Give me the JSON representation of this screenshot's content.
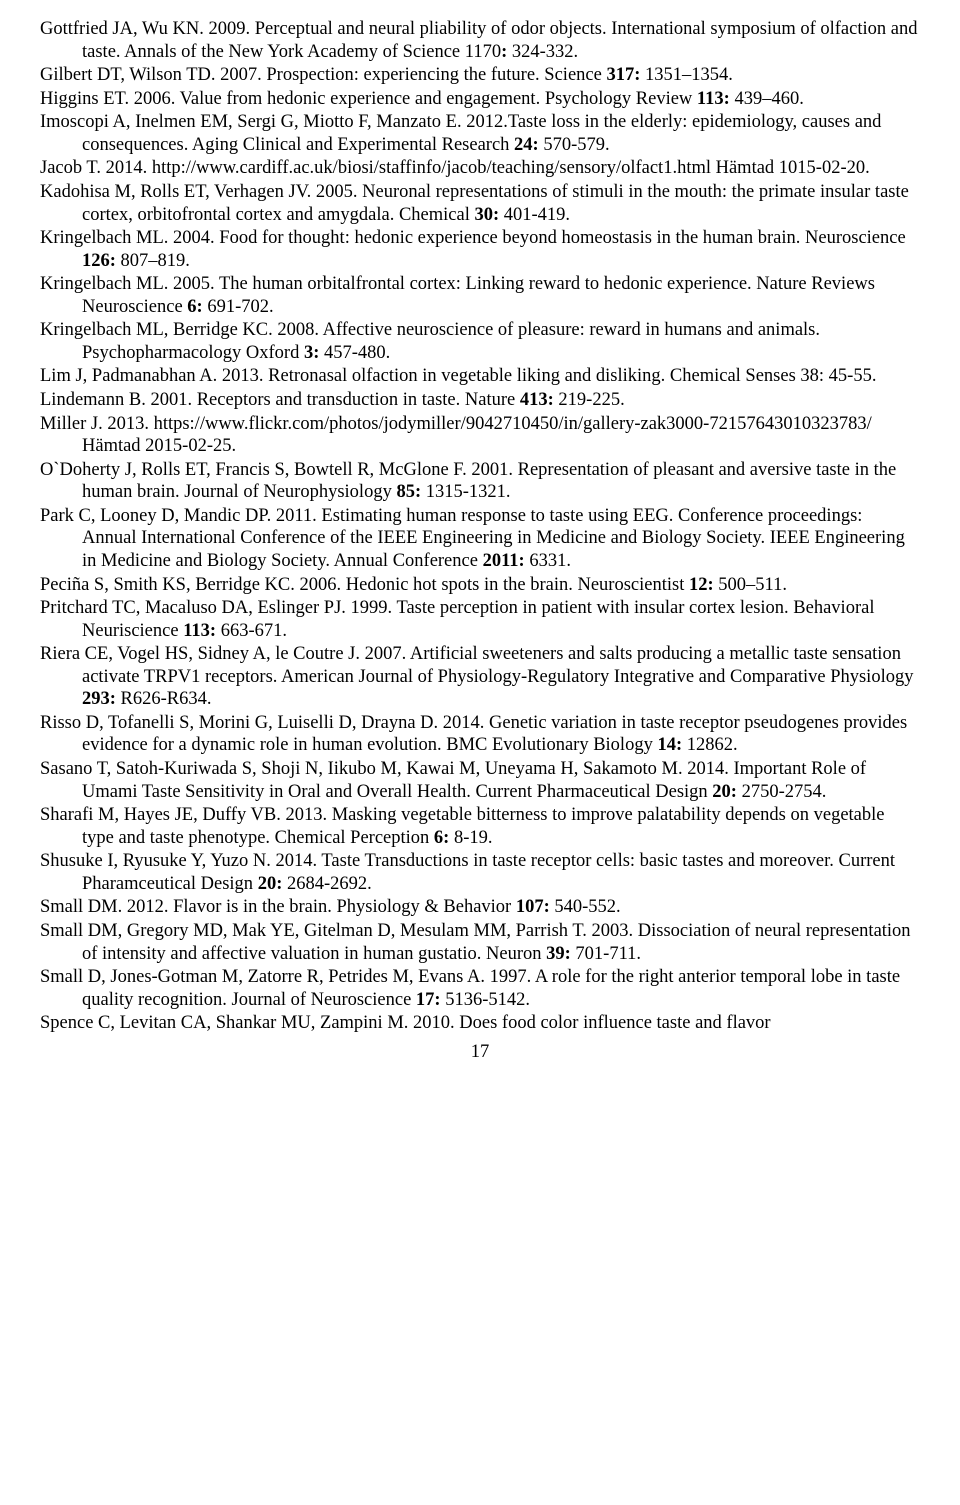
{
  "references": [
    {
      "html": "Gottfried JA, Wu KN. 2009. Perceptual and neural pliability of odor objects. International symposium of olfaction and taste. Annals of  the New York Academy of Science 1170<b>:</b> 324-332."
    },
    {
      "html": "Gilbert DT, Wilson TD. 2007. Prospection: experiencing the future. Science <b>317:</b> 1351–1354."
    },
    {
      "html": "Higgins ET. 2006. Value from hedonic experience and engagement. Psychology Review <b>113:</b> 439–460."
    },
    {
      "html": "Imoscopi A, Inelmen EM, Sergi G, Miotto F, Manzato E. 2012.Taste loss in the elderly: epidemiology, causes and consequences. Aging Clinical and Experimental Research <b>24:</b> 570-579."
    },
    {
      "html": "Jacob T. 2014. http://www.cardiff.ac.uk/biosi/staffinfo/jacob/teaching/sensory/olfact1.html Hämtad 1015-02-20."
    },
    {
      "html": "Kadohisa M, Rolls ET, Verhagen JV. 2005. Neuronal representations of stimuli in the mouth: the primate insular taste cortex, orbitofrontal cortex and amygdala. Chemical <b>30:</b> 401-419."
    },
    {
      "html": "Kringelbach ML. 2004. Food for thought: hedonic experience beyond homeostasis in the human brain. Neuroscience <b>126:</b> 807–819."
    },
    {
      "html": "Kringelbach ML. 2005. The human orbitalfrontal cortex: Linking reward to hedonic experience. Nature Reviews Neuroscience <b>6:</b> 691-702."
    },
    {
      "html": "Kringelbach ML, Berridge KC. 2008. Affective neuroscience of pleasure: reward in humans and animals. Psychopharmacology Oxford <b>3:</b> 457-480."
    },
    {
      "html": "Lim J, Padmanabhan A. 2013. Retronasal olfaction in vegetable liking and disliking. Chemical Senses 38: 45-55."
    },
    {
      "html": "Lindemann B. 2001. Receptors and transduction in taste. Nature <b>413:</b> 219-225."
    },
    {
      "html": "Miller J. 2013. https://www.flickr.com/photos/jodymiller/9042710450/in/gallery-zak3000-72157643010323783/ Hämtad 2015-02-25."
    },
    {
      "html": "O`Doherty J, Rolls ET, Francis S, Bowtell R, McGlone F. 2001. Representation of pleasant and aversive taste in the human brain. Journal of Neurophysiology <b>85:</b> 1315-1321."
    },
    {
      "html": "Park C, Looney D, Mandic DP. 2011. Estimating human response to taste using EEG. Conference proceedings: Annual International Conference of the IEEE Engineering in Medicine and Biology Society. IEEE Engineering in Medicine and Biology Society. Annual Conference <b>2011:</b> 6331."
    },
    {
      "html": "Peciña S, Smith KS, Berridge KC. 2006. Hedonic hot spots in the brain. Neuroscientist <b>12:</b> 500–511."
    },
    {
      "html": "Pritchard TC, Macaluso DA, Eslinger PJ. 1999. Taste perception in patient with insular cortex lesion. Behavioral Neuriscience <b>113:</b> 663-671."
    },
    {
      "html": "Riera CE, Vogel HS, Sidney A, le Coutre J. 2007. Artificial sweeteners and salts producing a metallic taste sensation activate TRPV1 receptors. American Journal of Physiology-Regulatory Integrative and Comparative Physiology <b>293:</b> R626-R634."
    },
    {
      "html": "Risso D, Tofanelli S, Morini G, Luiselli D, Drayna D. 2014. Genetic variation in taste receptor pseudogenes provides evidence for a dynamic role in human evolution. BMC Evolutionary Biology <b>14:</b> 12862."
    },
    {
      "html": "Sasano T, Satoh-Kuriwada S, Shoji N, Iikubo M, Kawai M, Uneyama H, Sakamoto M. 2014. Important Role of Umami Taste Sensitivity in Oral and Overall Health. Current Pharmaceutical Design <b>20:</b> 2750-2754."
    },
    {
      "html": "Sharafi M, Hayes JE, Duffy VB. 2013. Masking vegetable bitterness to improve palatability depends on vegetable type and taste phenotype. Chemical Perception <b>6:</b> 8-19."
    },
    {
      "html": "Shusuke I, Ryusuke Y, Yuzo N. 2014. Taste Transductions in taste receptor cells: basic tastes and moreover. Current Pharamceutical Design <b>20:</b> 2684-2692."
    },
    {
      "html": "Small DM. 2012. Flavor is in the brain. Physiology &amp; Behavior <b>107:</b> 540-552."
    },
    {
      "html": "Small DM, Gregory MD, Mak YE, Gitelman D, Mesulam MM, Parrish T. 2003. Dissociation of neural representation of intensity and affective valuation in human gustatio. Neuron <b>39:</b> 701-711."
    },
    {
      "html": "Small D, Jones-Gotman M, Zatorre R, Petrides M, Evans A. 1997. A role for the right anterior temporal lobe in taste quality recognition. Journal of Neuroscience <b>17:</b> 5136-5142."
    },
    {
      "html": "Spence C, Levitan CA, Shankar  MU, Zampini M. 2010. Does food color influence taste and flavor"
    }
  ],
  "page_number": "17"
}
